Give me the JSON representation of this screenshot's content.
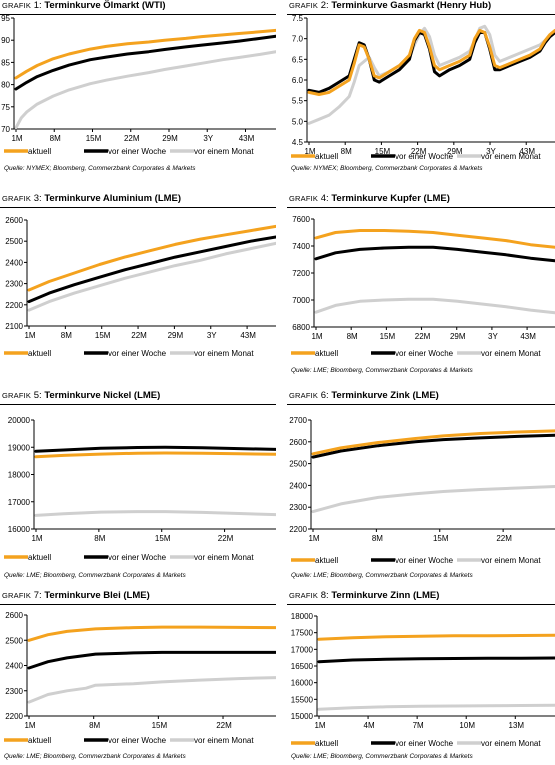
{
  "colors": {
    "aktuell": "#f4a21e",
    "vor_einer_woche": "#000000",
    "vor_einem_monat": "#cfcfcf"
  },
  "title_prefix": "Grafik",
  "legend_labels": [
    "aktuell",
    "vor einer Woche",
    "vor einem Monat"
  ],
  "chart_data": [
    {
      "type": "line",
      "number": "1:",
      "title": "Terminkurve Ölmarkt (WTI)",
      "source": "Quelle: NYMEX; Bloomberg, Commerzbank Corporates & Markets",
      "ylim": [
        70,
        95
      ],
      "yticks": [
        "70",
        "75",
        "80",
        "85",
        "90",
        "95"
      ],
      "xticks": [
        "1M",
        "8M",
        "15M",
        "22M",
        "29M",
        "3Y",
        "43M"
      ],
      "xlim": [
        1,
        50
      ],
      "series": [
        {
          "name": "aktuell",
          "x": [
            1,
            3,
            5,
            8,
            11,
            15,
            18,
            22,
            26,
            29,
            33,
            36,
            40,
            43,
            47,
            50
          ],
          "y": [
            81.5,
            83.0,
            84.3,
            85.8,
            86.9,
            88.0,
            88.6,
            89.2,
            89.6,
            90.0,
            90.4,
            90.8,
            91.2,
            91.5,
            91.9,
            92.2
          ]
        },
        {
          "name": "vor einer Woche",
          "x": [
            1,
            3,
            5,
            8,
            11,
            15,
            18,
            22,
            26,
            29,
            33,
            36,
            40,
            43,
            47,
            50
          ],
          "y": [
            79.0,
            80.5,
            81.8,
            83.2,
            84.4,
            85.6,
            86.2,
            86.9,
            87.4,
            87.9,
            88.5,
            88.9,
            89.4,
            89.8,
            90.4,
            90.9
          ]
        },
        {
          "name": "vor einem Monat",
          "x": [
            1,
            2,
            3,
            5,
            8,
            11,
            15,
            18,
            22,
            26,
            29,
            33,
            36,
            40,
            43,
            47,
            50
          ],
          "y": [
            70.3,
            72.5,
            73.8,
            75.6,
            77.4,
            78.8,
            80.2,
            81.0,
            81.9,
            82.7,
            83.4,
            84.2,
            84.8,
            85.6,
            86.1,
            86.8,
            87.4
          ]
        }
      ]
    },
    {
      "type": "line",
      "number": "2:",
      "title": "Terminkurve Gasmarkt (Henry Hub)",
      "source": "Quelle: NYMEX; Bloomberg, Commerzbank Corporates & Markets",
      "ylim": [
        4.5,
        7.5
      ],
      "yticks": [
        "4.5",
        "5.0",
        "5.5",
        "6.0",
        "6.5",
        "7.0",
        "7.5"
      ],
      "xticks": [
        "1M",
        "8M",
        "15M",
        "22M",
        "29M",
        "3Y",
        "43M"
      ],
      "xlim": [
        1,
        50
      ],
      "series": [
        {
          "name": "aktuell",
          "x": [
            1,
            3,
            5,
            7,
            9,
            10,
            11,
            12,
            13,
            14,
            15,
            17,
            19,
            21,
            22,
            23,
            24,
            25,
            26,
            27,
            29,
            31,
            33,
            34,
            35,
            36,
            37,
            38,
            39,
            41,
            43,
            45,
            47,
            48,
            49,
            50
          ],
          "y": [
            5.7,
            5.65,
            5.7,
            5.85,
            6.0,
            6.4,
            6.85,
            6.8,
            6.5,
            6.1,
            6.05,
            6.2,
            6.35,
            6.6,
            7.0,
            7.2,
            7.15,
            6.8,
            6.35,
            6.25,
            6.35,
            6.45,
            6.6,
            7.0,
            7.2,
            7.15,
            6.8,
            6.35,
            6.3,
            6.4,
            6.5,
            6.6,
            6.75,
            6.95,
            7.1,
            7.2
          ]
        },
        {
          "name": "vor einer Woche",
          "x": [
            1,
            3,
            5,
            7,
            9,
            10,
            11,
            12,
            13,
            14,
            15,
            17,
            19,
            21,
            22,
            23,
            24,
            25,
            26,
            27,
            29,
            31,
            33,
            34,
            35,
            36,
            37,
            38,
            39,
            41,
            43,
            45,
            47,
            48,
            49,
            50
          ],
          "y": [
            5.75,
            5.7,
            5.8,
            5.95,
            6.1,
            6.5,
            6.9,
            6.85,
            6.5,
            6.0,
            5.95,
            6.1,
            6.25,
            6.5,
            6.95,
            7.15,
            7.1,
            6.75,
            6.2,
            6.1,
            6.25,
            6.35,
            6.5,
            6.9,
            7.15,
            7.15,
            6.75,
            6.25,
            6.25,
            6.35,
            6.45,
            6.55,
            6.7,
            6.9,
            7.05,
            7.15
          ]
        },
        {
          "name": "vor einem Monat",
          "x": [
            1,
            3,
            5,
            7,
            9,
            10,
            11,
            12,
            13,
            14,
            15,
            17,
            19,
            21,
            22,
            23,
            24,
            25,
            26,
            27,
            29,
            31,
            33,
            34,
            35,
            36,
            37,
            38,
            39,
            41,
            43,
            45,
            47,
            48,
            49,
            50
          ],
          "y": [
            4.95,
            5.05,
            5.15,
            5.35,
            5.6,
            5.95,
            6.35,
            6.45,
            6.55,
            6.3,
            6.1,
            6.2,
            6.35,
            6.55,
            6.85,
            7.1,
            7.25,
            7.05,
            6.6,
            6.35,
            6.45,
            6.55,
            6.7,
            6.95,
            7.25,
            7.3,
            7.1,
            6.6,
            6.45,
            6.55,
            6.65,
            6.75,
            6.85,
            6.95,
            7.05,
            7.15
          ]
        }
      ]
    },
    {
      "type": "line",
      "number": "3:",
      "title": "Terminkurve Aluminium (LME)",
      "source": "",
      "ylim": [
        2100,
        2600
      ],
      "yticks": [
        "2100",
        "2200",
        "2300",
        "2400",
        "2500",
        "2600"
      ],
      "xticks": [
        "1M",
        "8M",
        "15M",
        "22M",
        "29M",
        "3Y",
        "43M"
      ],
      "xlim": [
        1,
        50
      ],
      "series": [
        {
          "name": "aktuell",
          "x": [
            1,
            5,
            10,
            15,
            20,
            25,
            30,
            35,
            40,
            45,
            50
          ],
          "y": [
            2270,
            2310,
            2350,
            2390,
            2425,
            2455,
            2485,
            2510,
            2530,
            2550,
            2570
          ]
        },
        {
          "name": "vor einer Woche",
          "x": [
            1,
            5,
            10,
            15,
            20,
            25,
            30,
            35,
            40,
            45,
            50
          ],
          "y": [
            2215,
            2255,
            2295,
            2330,
            2365,
            2395,
            2425,
            2450,
            2475,
            2500,
            2520
          ]
        },
        {
          "name": "vor einem Monat",
          "x": [
            1,
            5,
            10,
            15,
            20,
            25,
            30,
            35,
            40,
            45,
            50
          ],
          "y": [
            2175,
            2215,
            2255,
            2290,
            2325,
            2355,
            2385,
            2410,
            2440,
            2465,
            2490
          ]
        }
      ]
    },
    {
      "type": "line",
      "number": "4:",
      "title": "Terminkurve Kupfer (LME)",
      "source": "Quelle: LME; Bloomberg, Commerzbank Corporates & Markets",
      "ylim": [
        6800,
        7600
      ],
      "yticks": [
        "6800",
        "7000",
        "7200",
        "7400",
        "7600"
      ],
      "xticks": [
        "1M",
        "8M",
        "15M",
        "22M",
        "29M",
        "3Y",
        "43M"
      ],
      "xlim": [
        1,
        50
      ],
      "series": [
        {
          "name": "aktuell",
          "x": [
            1,
            5,
            10,
            15,
            20,
            25,
            30,
            35,
            40,
            45,
            50
          ],
          "y": [
            7460,
            7500,
            7515,
            7515,
            7510,
            7500,
            7480,
            7460,
            7440,
            7410,
            7390
          ]
        },
        {
          "name": "vor einer Woche",
          "x": [
            1,
            5,
            10,
            15,
            20,
            25,
            30,
            35,
            40,
            45,
            50
          ],
          "y": [
            7305,
            7350,
            7375,
            7385,
            7390,
            7390,
            7375,
            7355,
            7335,
            7310,
            7290
          ]
        },
        {
          "name": "vor einem Monat",
          "x": [
            1,
            5,
            10,
            15,
            20,
            25,
            30,
            35,
            40,
            45,
            50
          ],
          "y": [
            6910,
            6960,
            6990,
            7000,
            7005,
            7005,
            6990,
            6970,
            6950,
            6925,
            6905
          ]
        }
      ]
    },
    {
      "type": "line",
      "number": "5:",
      "title": "Terminkurve Nickel (LME)",
      "source": "Quelle: LME; Bloomberg, Commerzbank Corporates & Markets",
      "ylim": [
        16000,
        20000
      ],
      "yticks": [
        "16000",
        "17000",
        "18000",
        "19000",
        "20000"
      ],
      "xticks": [
        "1M",
        "8M",
        "15M",
        "22M"
      ],
      "xlim": [
        1,
        27
      ],
      "series": [
        {
          "name": "aktuell",
          "x": [
            1,
            4,
            8,
            12,
            15,
            19,
            23,
            27
          ],
          "y": [
            18650,
            18700,
            18750,
            18780,
            18790,
            18780,
            18760,
            18740
          ]
        },
        {
          "name": "vor einer Woche",
          "x": [
            1,
            4,
            8,
            12,
            15,
            19,
            23,
            27
          ],
          "y": [
            18850,
            18900,
            18960,
            18990,
            19000,
            18980,
            18950,
            18920
          ]
        },
        {
          "name": "vor einem Monat",
          "x": [
            1,
            4,
            8,
            12,
            15,
            19,
            23,
            27
          ],
          "y": [
            16500,
            16560,
            16620,
            16640,
            16640,
            16610,
            16570,
            16530
          ]
        }
      ]
    },
    {
      "type": "line",
      "number": "6:",
      "title": "Terminkurve Zink (LME)",
      "source": "Quelle: LME; Bloomberg, Commerzbank Corporates & Markets",
      "ylim": [
        2200,
        2700
      ],
      "yticks": [
        "2200",
        "2300",
        "2400",
        "2500",
        "2600",
        "2700"
      ],
      "xticks": [
        "1M",
        "8M",
        "15M",
        "22M"
      ],
      "xlim": [
        1,
        27
      ],
      "series": [
        {
          "name": "aktuell",
          "x": [
            1,
            4,
            8,
            12,
            15,
            19,
            23,
            27
          ],
          "y": [
            2545,
            2572,
            2597,
            2615,
            2627,
            2638,
            2645,
            2650
          ]
        },
        {
          "name": "vor einer Woche",
          "x": [
            1,
            4,
            8,
            12,
            15,
            19,
            23,
            27
          ],
          "y": [
            2530,
            2558,
            2582,
            2600,
            2610,
            2618,
            2625,
            2630
          ]
        },
        {
          "name": "vor einem Monat",
          "x": [
            1,
            4,
            8,
            12,
            15,
            19,
            23,
            27
          ],
          "y": [
            2280,
            2315,
            2345,
            2362,
            2372,
            2381,
            2388,
            2395
          ]
        }
      ]
    },
    {
      "type": "line",
      "number": "7:",
      "title": "Terminkurve Blei (LME)",
      "source": "Quelle: LME; Bloomberg, Commerzbank Corporates & Markets",
      "ylim": [
        2200,
        2600
      ],
      "yticks": [
        "2200",
        "2300",
        "2400",
        "2500",
        "2600"
      ],
      "xticks": [
        "1M",
        "8M",
        "15M",
        "22M"
      ],
      "xlim": [
        1,
        27
      ],
      "series": [
        {
          "name": "aktuell",
          "x": [
            1,
            3,
            5,
            8,
            12,
            15,
            19,
            23,
            27
          ],
          "y": [
            2500,
            2522,
            2535,
            2545,
            2550,
            2552,
            2552,
            2551,
            2550
          ]
        },
        {
          "name": "vor einer Woche",
          "x": [
            1,
            3,
            5,
            8,
            12,
            15,
            19,
            23,
            27
          ],
          "y": [
            2390,
            2415,
            2430,
            2445,
            2450,
            2452,
            2452,
            2452,
            2452
          ]
        },
        {
          "name": "vor einem Monat",
          "x": [
            1,
            3,
            5,
            7,
            8,
            12,
            15,
            19,
            23,
            27
          ],
          "y": [
            2255,
            2285,
            2300,
            2310,
            2322,
            2328,
            2335,
            2342,
            2348,
            2352
          ]
        }
      ]
    },
    {
      "type": "line",
      "number": "8:",
      "title": "Terminkurve Zinn (LME)",
      "source": "Quelle: LME; Bloomberg, Commerzbank Corporates & Markets",
      "ylim": [
        15000,
        18000
      ],
      "yticks": [
        "15000",
        "15500",
        "16000",
        "16500",
        "17000",
        "17500",
        "18000"
      ],
      "xticks": [
        "1M",
        "4M",
        "7M",
        "10M",
        "13M"
      ],
      "xlim": [
        1,
        15
      ],
      "series": [
        {
          "name": "aktuell",
          "x": [
            1,
            3,
            5,
            7,
            9,
            11,
            13,
            15
          ],
          "y": [
            17300,
            17350,
            17380,
            17395,
            17405,
            17410,
            17415,
            17420
          ]
        },
        {
          "name": "vor einer Woche",
          "x": [
            1,
            3,
            5,
            7,
            9,
            11,
            13,
            15
          ],
          "y": [
            16630,
            16680,
            16700,
            16715,
            16725,
            16730,
            16735,
            16740
          ]
        },
        {
          "name": "vor einem Monat",
          "x": [
            1,
            3,
            5,
            7,
            9,
            11,
            13,
            15
          ],
          "y": [
            15200,
            15250,
            15275,
            15290,
            15300,
            15310,
            15315,
            15320
          ]
        }
      ]
    }
  ]
}
